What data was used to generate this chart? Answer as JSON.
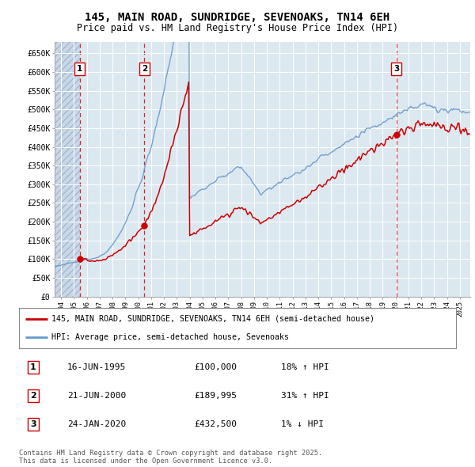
{
  "title": "145, MAIN ROAD, SUNDRIDGE, SEVENOAKS, TN14 6EH",
  "subtitle": "Price paid vs. HM Land Registry's House Price Index (HPI)",
  "ylim": [
    0,
    680000
  ],
  "yticks": [
    0,
    50000,
    100000,
    150000,
    200000,
    250000,
    300000,
    350000,
    400000,
    450000,
    500000,
    550000,
    600000,
    650000
  ],
  "ytick_labels": [
    "£0",
    "£50K",
    "£100K",
    "£150K",
    "£200K",
    "£250K",
    "£300K",
    "£350K",
    "£400K",
    "£450K",
    "£500K",
    "£550K",
    "£600K",
    "£650K"
  ],
  "xlim_start": 1993.5,
  "xlim_end": 2025.8,
  "sale_dates": [
    1995.46,
    2000.47,
    2020.07
  ],
  "sale_prices": [
    100000,
    189995,
    432500
  ],
  "sale_labels": [
    "1",
    "2",
    "3"
  ],
  "sale_info": [
    {
      "label": "1",
      "date": "16-JUN-1995",
      "price": "£100,000",
      "hpi": "18% ↑ HPI"
    },
    {
      "label": "2",
      "date": "21-JUN-2000",
      "price": "£189,995",
      "hpi": "31% ↑ HPI"
    },
    {
      "label": "3",
      "date": "24-JAN-2020",
      "price": "£432,500",
      "hpi": "1% ↓ HPI"
    }
  ],
  "legend_line1": "145, MAIN ROAD, SUNDRIDGE, SEVENOAKS, TN14 6EH (semi-detached house)",
  "legend_line2": "HPI: Average price, semi-detached house, Sevenoaks",
  "footnote": "Contains HM Land Registry data © Crown copyright and database right 2025.\nThis data is licensed under the Open Government Licence v3.0.",
  "line_color": "#cc0000",
  "hpi_color": "#6699cc",
  "plot_bg": "#dce8f0"
}
